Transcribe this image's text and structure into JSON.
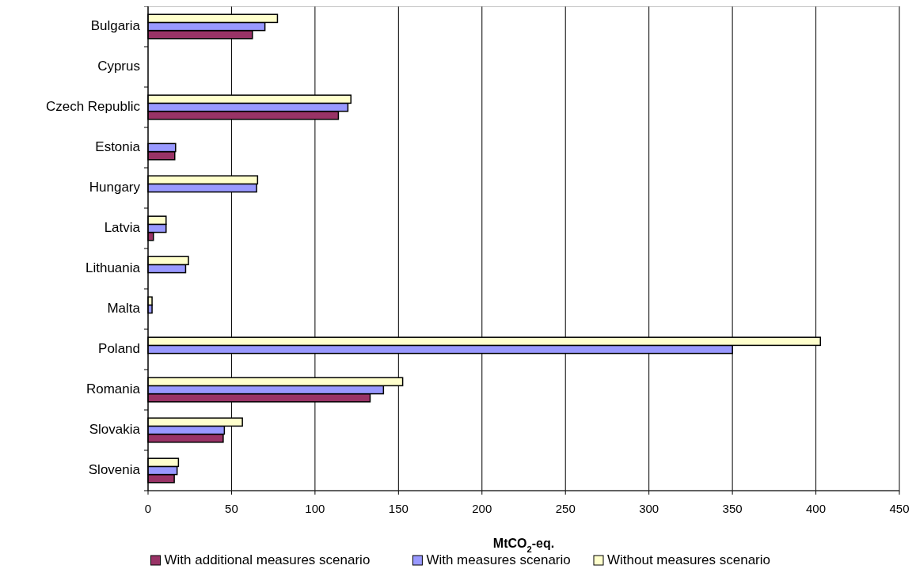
{
  "chart_data": {
    "type": "bar",
    "orientation": "horizontal",
    "xlabel": "MtCO$_{2}$-eq.",
    "categories": [
      "Bulgaria",
      "Cyprus",
      "Czech Republic",
      "Estonia",
      "Hungary",
      "Latvia",
      "Lithuania",
      "Malta",
      "Poland",
      "Romania",
      "Slovakia",
      "Slovenia"
    ],
    "series": [
      {
        "name": "With additional measures scenario",
        "color": "#993366",
        "values": [
          62.5,
          null,
          114,
          16,
          null,
          3.2,
          null,
          null,
          null,
          133,
          45,
          15.7
        ]
      },
      {
        "name": "With measures scenario",
        "color": "#9999ff",
        "values": [
          70,
          null,
          119.7,
          16.5,
          65,
          10.8,
          22.5,
          2.4,
          350,
          141,
          45.7,
          17.4
        ]
      },
      {
        "name": "Without measures scenario",
        "color": "#ffffcc",
        "values": [
          77.5,
          null,
          121.5,
          null,
          65.6,
          10.8,
          24.2,
          2.4,
          402.7,
          152.5,
          56.5,
          18.2
        ]
      }
    ],
    "xlim": [
      0,
      450
    ],
    "xticks": [
      0,
      50,
      100,
      150,
      200,
      250,
      300,
      350,
      400,
      450
    ],
    "grid": "x",
    "legend": "bottom"
  }
}
